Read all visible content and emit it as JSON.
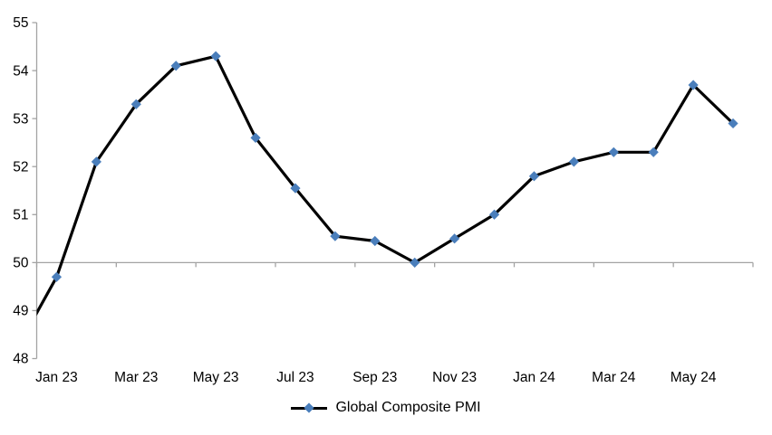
{
  "chart_data": {
    "type": "line",
    "title": "",
    "legend_label": "Global Composite PMI",
    "legend_position": "bottom-center",
    "categories": [
      "Dec 22",
      "Jan 23",
      "Feb 23",
      "Mar 23",
      "Apr 23",
      "May 23",
      "Jun 23",
      "Jul 23",
      "Aug 23",
      "Sep 23",
      "Oct 23",
      "Nov 23",
      "Dec 23",
      "Jan 24",
      "Feb 24",
      "Mar 24",
      "Apr 24",
      "May 24",
      "Jun 24"
    ],
    "values": [
      48.2,
      49.7,
      52.1,
      53.3,
      54.1,
      54.3,
      52.6,
      51.55,
      50.55,
      50.45,
      50.0,
      50.5,
      51.0,
      51.8,
      52.1,
      52.3,
      52.3,
      53.7,
      52.9
    ],
    "first_point_clipped_at_left_axis": true,
    "x_tick_labels": [
      "Jan 23",
      "Mar 23",
      "May 23",
      "Jul 23",
      "Sep 23",
      "Nov 23",
      "Jan 24",
      "Mar 24",
      "May 24"
    ],
    "x_label_every_n_categories": 2,
    "y_tick_labels": [
      "55",
      "54",
      "53",
      "52",
      "51",
      "50",
      "49",
      "48"
    ],
    "ylim": [
      48,
      55
    ],
    "y_tick_step": 1,
    "x_axis_crosses_y_at": 50,
    "grid": "none",
    "marker_shape": "diamond",
    "colors": {
      "line": "#000000",
      "marker": "#4A7EBB",
      "axis": "#A3A3A3",
      "text": "#000000",
      "background": "#FFFFFF"
    }
  }
}
